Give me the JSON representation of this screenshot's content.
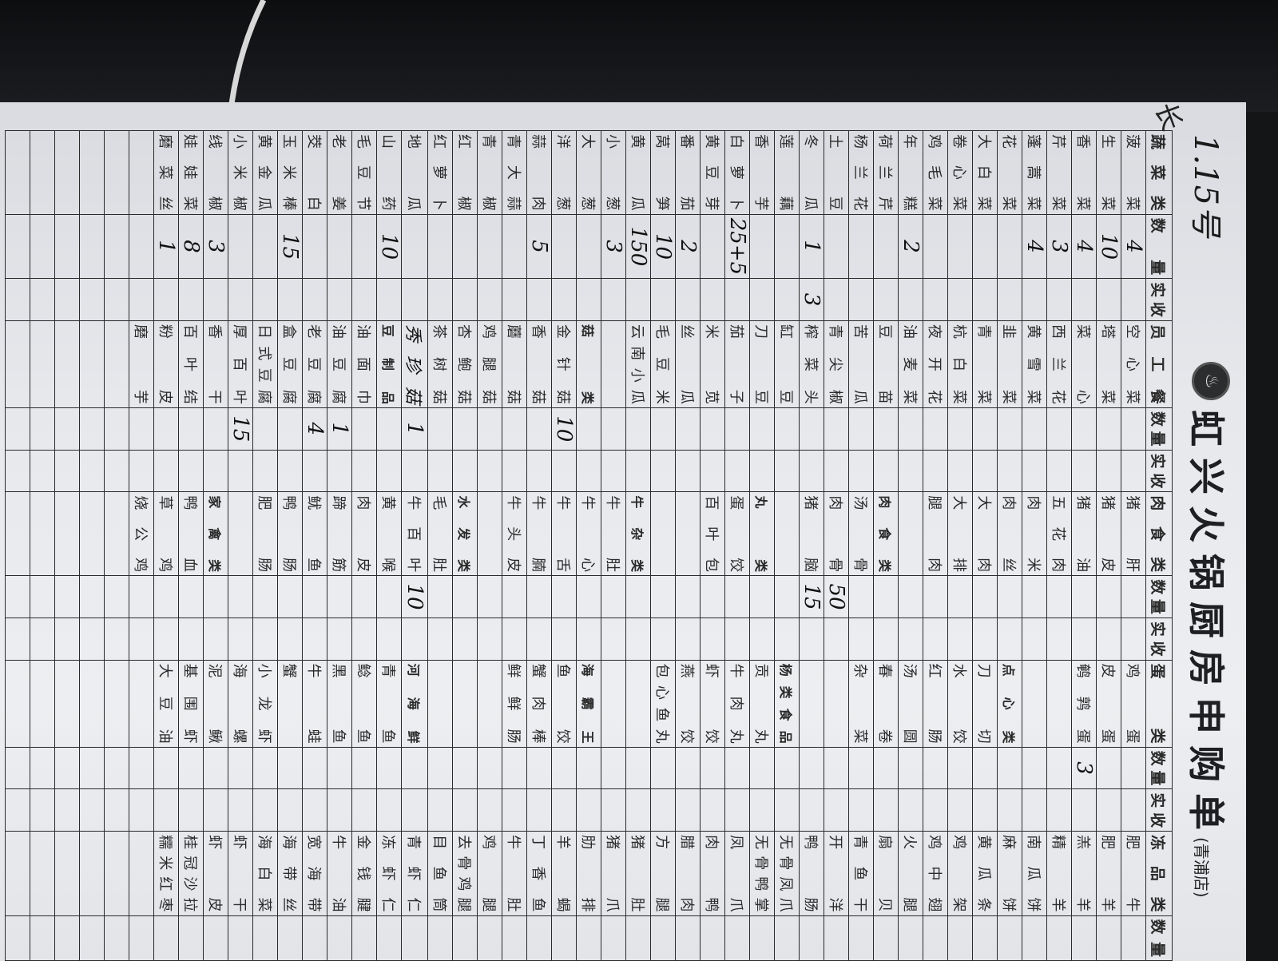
{
  "title": "虹兴火锅厨房申购单",
  "subtitle": "(青浦店)",
  "handwritten_date": "1.15号",
  "handwritten_mark": "长",
  "logo_icon": "hotpot-logo",
  "headers": [
    "蔬菜类",
    "数量",
    "实收",
    "员工餐",
    "数量",
    "实收",
    "肉食类",
    "数量",
    "实收",
    "蛋类",
    "数量",
    "实收",
    "冻品类",
    "数量"
  ],
  "groups": {
    "vegetables": [
      {
        "name": "菠菜",
        "qty": "4"
      },
      {
        "name": "生菜",
        "qty": "10"
      },
      {
        "name": "香菜",
        "qty": "4"
      },
      {
        "name": "芹菜",
        "qty": "3"
      },
      {
        "name": "蓬蒿菜",
        "qty": "4"
      },
      {
        "name": "花菜"
      },
      {
        "name": "大白菜"
      },
      {
        "name": "卷心菜"
      },
      {
        "name": "鸡毛菜"
      },
      {
        "name": "年糕",
        "qty": "2"
      },
      {
        "name": "荷兰芹"
      },
      {
        "name": "杨兰花"
      },
      {
        "name": "土豆"
      },
      {
        "name": "冬瓜",
        "qty": "1",
        "received": "3"
      },
      {
        "name": "莲藕"
      },
      {
        "name": "香芋"
      },
      {
        "name": "白萝卜",
        "qty": "25+5"
      },
      {
        "name": "黄豆芽"
      },
      {
        "name": "番茄",
        "qty": "2"
      },
      {
        "name": "莴笋",
        "qty": "10"
      },
      {
        "name": "黄瓜",
        "qty": "150"
      },
      {
        "name": "小葱",
        "qty": "3"
      },
      {
        "name": "大葱"
      },
      {
        "name": "洋葱"
      },
      {
        "name": "蒜肉",
        "qty": "5"
      },
      {
        "name": "青大蒜"
      },
      {
        "name": "青椒"
      },
      {
        "name": "红椒"
      },
      {
        "name": "红萝卜"
      },
      {
        "name": "地瓜"
      },
      {
        "name": "山药",
        "qty": "10"
      },
      {
        "name": "毛豆节"
      },
      {
        "name": "老姜"
      },
      {
        "name": "茭白"
      },
      {
        "name": "玉米棒",
        "qty": "15"
      },
      {
        "name": "黄金瓜"
      },
      {
        "name": "小米椒"
      },
      {
        "name": "线椒",
        "qty": "3"
      },
      {
        "name": "娃娃菜",
        "qty": "8"
      },
      {
        "name": "磨菜丝",
        "qty": "1"
      }
    ],
    "staff_meal": [
      {
        "name": "空心菜"
      },
      {
        "name": "塔菜"
      },
      {
        "name": "菜心"
      },
      {
        "name": "西兰花"
      },
      {
        "name": "黄雪菜"
      },
      {
        "name": "韭菜"
      },
      {
        "name": "青菜"
      },
      {
        "name": "杭白菜"
      },
      {
        "name": "夜开花"
      },
      {
        "name": "油麦菜"
      },
      {
        "name": "豆苗"
      },
      {
        "name": "苦瓜"
      },
      {
        "name": "青尖椒"
      },
      {
        "name": "榨菜头"
      },
      {
        "name": "缸豆"
      },
      {
        "name": "刀豆"
      },
      {
        "name": "茄子"
      },
      {
        "name": "米苋"
      },
      {
        "name": "丝瓜"
      },
      {
        "name": "毛豆米"
      },
      {
        "name": "云南小瓜"
      },
      {
        "name": ""
      },
      {
        "name": "菇类",
        "section": true
      },
      {
        "name": "金针菇",
        "qty": "10"
      },
      {
        "name": "香菇"
      },
      {
        "name": "蘑菇"
      },
      {
        "name": "鸡腿菇"
      },
      {
        "name": "杏鲍菇"
      },
      {
        "name": "茶树菇"
      },
      {
        "name": "秀珍菇",
        "qty": "1",
        "handwritten": true
      },
      {
        "name": "豆制品",
        "section": true
      },
      {
        "name": "油面巾"
      },
      {
        "name": "油豆腐",
        "qty": "1"
      },
      {
        "name": "老豆腐",
        "qty": "4"
      },
      {
        "name": "盒豆腐"
      },
      {
        "name": "日式豆腐"
      },
      {
        "name": "厚百叶",
        "qty": "15"
      },
      {
        "name": "香干"
      },
      {
        "name": "百叶结"
      },
      {
        "name": "粉皮"
      },
      {
        "name": "磨芋"
      }
    ],
    "meat": [
      {
        "name": "猪肝"
      },
      {
        "name": "猪皮"
      },
      {
        "name": "猪油"
      },
      {
        "name": "五花肉"
      },
      {
        "name": "肉米"
      },
      {
        "name": "肉丝"
      },
      {
        "name": "大肉"
      },
      {
        "name": "大排"
      },
      {
        "name": "腿肉"
      },
      {
        "name": ""
      },
      {
        "name": "肉食类",
        "section": true
      },
      {
        "name": "汤骨"
      },
      {
        "name": "肉骨",
        "qty": "50"
      },
      {
        "name": "猪脑",
        "qty": "15"
      },
      {
        "name": ""
      },
      {
        "name": "丸类",
        "section": true
      },
      {
        "name": "蛋饺"
      },
      {
        "name": "百叶包"
      },
      {
        "name": ""
      },
      {
        "name": ""
      },
      {
        "name": "牛杂类",
        "section": true
      },
      {
        "name": "牛肚"
      },
      {
        "name": "牛心"
      },
      {
        "name": "牛舌"
      },
      {
        "name": "牛腩"
      },
      {
        "name": "牛头皮"
      },
      {
        "name": ""
      },
      {
        "name": "水发类",
        "section": true
      },
      {
        "name": "毛肚"
      },
      {
        "name": "牛百叶",
        "qty": "10"
      },
      {
        "name": "黄喉"
      },
      {
        "name": "肉皮"
      },
      {
        "name": "蹄筋"
      },
      {
        "name": "鱿鱼"
      },
      {
        "name": "鸭肠"
      },
      {
        "name": "肥肠"
      },
      {
        "name": ""
      },
      {
        "name": "家禽类",
        "section": true
      },
      {
        "name": "鸭血"
      },
      {
        "name": "草鸡"
      },
      {
        "name": "烧公鸡"
      }
    ],
    "eggs": [
      {
        "name": "鸡蛋"
      },
      {
        "name": "皮蛋"
      },
      {
        "name": "鹌鹑蛋",
        "qty": "3"
      },
      {
        "name": ""
      },
      {
        "name": ""
      },
      {
        "name": "点心类",
        "section": true
      },
      {
        "name": "刀切"
      },
      {
        "name": "水饺"
      },
      {
        "name": "红肠"
      },
      {
        "name": "汤圆"
      },
      {
        "name": "春卷"
      },
      {
        "name": "杂菜"
      },
      {
        "name": ""
      },
      {
        "name": ""
      },
      {
        "name": "杨类食品",
        "section": true
      },
      {
        "name": "贡丸"
      },
      {
        "name": "牛肉丸"
      },
      {
        "name": "虾饺"
      },
      {
        "name": "燕饺"
      },
      {
        "name": "包心鱼丸"
      },
      {
        "name": ""
      },
      {
        "name": ""
      },
      {
        "name": "海霸王",
        "section": true
      },
      {
        "name": "鱼饺"
      },
      {
        "name": "蟹肉棒"
      },
      {
        "name": "鲜鲜肠"
      },
      {
        "name": ""
      },
      {
        "name": ""
      },
      {
        "name": ""
      },
      {
        "name": "河海鲜",
        "section": true
      },
      {
        "name": "青鱼"
      },
      {
        "name": "鲶鱼"
      },
      {
        "name": "黑鱼"
      },
      {
        "name": "牛蛙"
      },
      {
        "name": "蟹"
      },
      {
        "name": "小龙虾"
      },
      {
        "name": "海螺"
      },
      {
        "name": "泥鳅"
      },
      {
        "name": "基围虾"
      },
      {
        "name": "大豆油"
      }
    ],
    "frozen": [
      {
        "name": "肥牛"
      },
      {
        "name": "肥羊"
      },
      {
        "name": "羔羊"
      },
      {
        "name": "精羊"
      },
      {
        "name": "南瓜饼"
      },
      {
        "name": "麻饼"
      },
      {
        "name": "黄瓜条"
      },
      {
        "name": "鸡架"
      },
      {
        "name": "鸡中翅"
      },
      {
        "name": "火腿"
      },
      {
        "name": "扇贝"
      },
      {
        "name": "青鱼干"
      },
      {
        "name": "开洋"
      },
      {
        "name": "鸭肠"
      },
      {
        "name": "无骨凤爪"
      },
      {
        "name": "无骨鸭掌"
      },
      {
        "name": "凤爪"
      },
      {
        "name": "肉鸭"
      },
      {
        "name": "腊肉"
      },
      {
        "name": "方腿"
      },
      {
        "name": "猪肚"
      },
      {
        "name": "猪爪"
      },
      {
        "name": "肋排"
      },
      {
        "name": "羊蝎"
      },
      {
        "name": "丁香鱼"
      },
      {
        "name": "牛肚"
      },
      {
        "name": "鸡腿"
      },
      {
        "name": "去骨鸡腿"
      },
      {
        "name": "目鱼筒"
      },
      {
        "name": "青虾仁"
      },
      {
        "name": "冻虾仁"
      },
      {
        "name": "金钱腱"
      },
      {
        "name": "牛油"
      },
      {
        "name": "宽海带"
      },
      {
        "name": "海带丝"
      },
      {
        "name": "海白菜"
      },
      {
        "name": "虾干"
      },
      {
        "name": "虾皮"
      },
      {
        "name": "桂冠沙拉"
      },
      {
        "name": "糯米红枣"
      }
    ]
  }
}
